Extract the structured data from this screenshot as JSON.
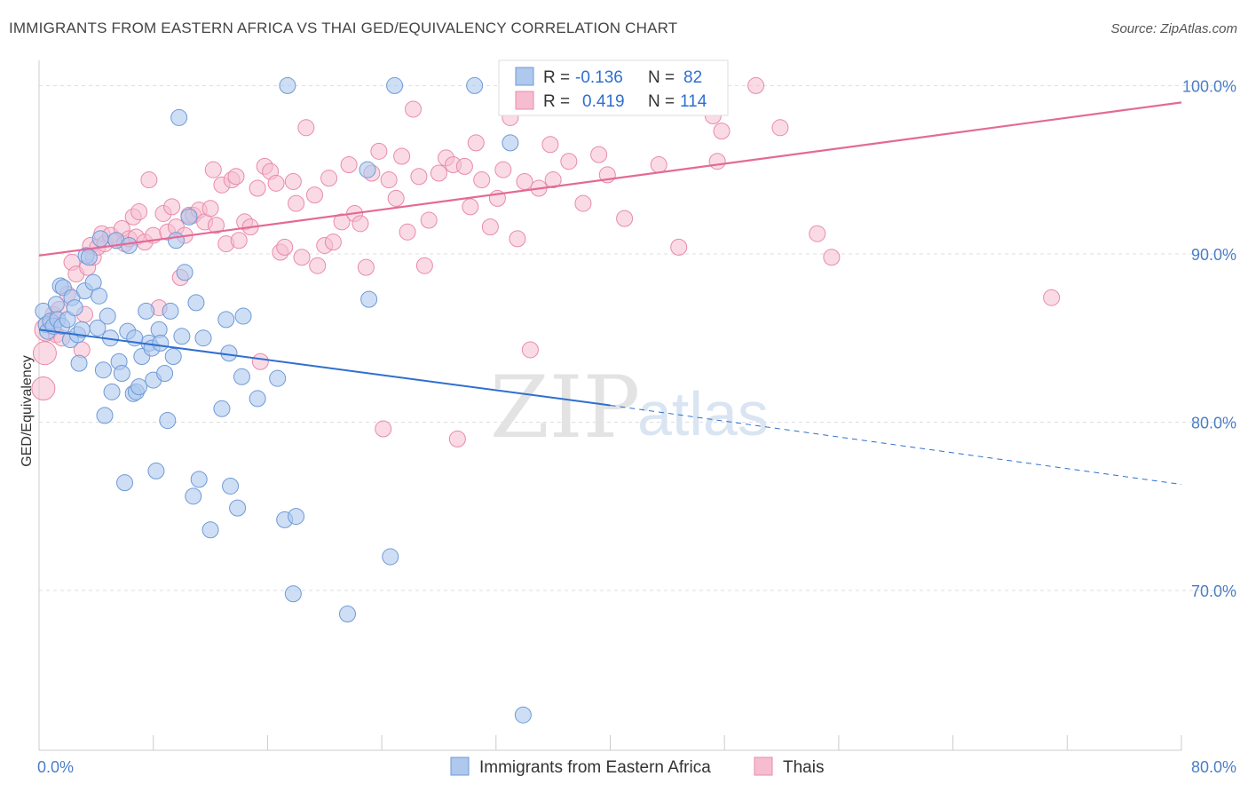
{
  "title": "IMMIGRANTS FROM EASTERN AFRICA VS THAI GED/EQUIVALENCY CORRELATION CHART",
  "source": "Source: ZipAtlas.com",
  "watermark": {
    "zip": "ZIP",
    "atlas": "atlas"
  },
  "colors": {
    "blue_fill": "#aec8ee",
    "blue_stroke": "#6f9ad6",
    "blue_line": "#2f6fcf",
    "pink_fill": "#f6bdd0",
    "pink_stroke": "#e98aab",
    "pink_line": "#e36a96",
    "grid": "#dddddd",
    "tick_text": "#4a7ec7"
  },
  "legend": {
    "rows": [
      {
        "r_label": "R = ",
        "r_value": "-0.136",
        "n_label": "N = ",
        "n_value": "82"
      },
      {
        "r_label": "R = ",
        "r_value": "0.419",
        "n_label": "N = ",
        "n_value": "114"
      }
    ]
  },
  "chart_data": {
    "type": "scatter",
    "title": "IMMIGRANTS FROM EASTERN AFRICA VS THAI GED/EQUIVALENCY CORRELATION CHART",
    "xlabel": "",
    "ylabel": "GED/Equivalency",
    "xlim": [
      0,
      80
    ],
    "ylim": [
      60.5,
      101.5
    ],
    "x_tick_labels": [
      "0.0%",
      "80.0%"
    ],
    "y_ticks": [
      70,
      80,
      90,
      100
    ],
    "y_tick_labels": [
      "70.0%",
      "80.0%",
      "90.0%",
      "100.0%"
    ],
    "grid": true,
    "legend_position": "bottom",
    "series": [
      {
        "name": "Immigrants from Eastern Africa",
        "color": "#aec8ee",
        "r": -0.136,
        "n": 82,
        "trend": {
          "x0": 0,
          "y0": 85.5,
          "x1": 40,
          "y1": 81.0,
          "dashed_to_x": 80,
          "dashed_to_y": 76.3
        },
        "points": [
          [
            0.3,
            86.6
          ],
          [
            0.5,
            85.8
          ],
          [
            0.6,
            85.4
          ],
          [
            0.8,
            86.0
          ],
          [
            1.0,
            85.7
          ],
          [
            1.2,
            87.0
          ],
          [
            1.3,
            86.1
          ],
          [
            1.5,
            88.1
          ],
          [
            1.6,
            85.7
          ],
          [
            1.7,
            88.0
          ],
          [
            2.0,
            86.1
          ],
          [
            2.2,
            84.9
          ],
          [
            2.3,
            87.4
          ],
          [
            2.5,
            86.8
          ],
          [
            2.7,
            85.2
          ],
          [
            2.8,
            83.5
          ],
          [
            3.0,
            85.5
          ],
          [
            3.2,
            87.8
          ],
          [
            3.3,
            89.9
          ],
          [
            3.5,
            89.8
          ],
          [
            3.8,
            88.3
          ],
          [
            4.1,
            85.6
          ],
          [
            4.2,
            87.5
          ],
          [
            4.3,
            90.9
          ],
          [
            4.5,
            83.1
          ],
          [
            4.6,
            80.4
          ],
          [
            4.8,
            86.3
          ],
          [
            5.0,
            85.0
          ],
          [
            5.1,
            81.8
          ],
          [
            5.4,
            90.8
          ],
          [
            5.6,
            83.6
          ],
          [
            5.8,
            82.9
          ],
          [
            6.0,
            76.4
          ],
          [
            6.2,
            85.4
          ],
          [
            6.3,
            90.5
          ],
          [
            6.6,
            81.7
          ],
          [
            6.8,
            81.8
          ],
          [
            7.0,
            82.1
          ],
          [
            7.2,
            83.9
          ],
          [
            7.5,
            86.6
          ],
          [
            7.7,
            84.7
          ],
          [
            7.9,
            84.4
          ],
          [
            8.0,
            82.5
          ],
          [
            8.2,
            77.1
          ],
          [
            8.4,
            85.5
          ],
          [
            8.5,
            84.7
          ],
          [
            8.8,
            82.9
          ],
          [
            9.0,
            80.1
          ],
          [
            9.2,
            86.6
          ],
          [
            9.4,
            83.9
          ],
          [
            9.6,
            90.8
          ],
          [
            9.8,
            98.1
          ],
          [
            10.0,
            85.1
          ],
          [
            10.2,
            88.9
          ],
          [
            10.5,
            92.2
          ],
          [
            10.8,
            75.6
          ],
          [
            11.0,
            87.1
          ],
          [
            11.2,
            76.6
          ],
          [
            11.5,
            85.0
          ],
          [
            12.0,
            73.6
          ],
          [
            12.8,
            80.8
          ],
          [
            13.1,
            86.1
          ],
          [
            13.3,
            84.1
          ],
          [
            13.4,
            76.2
          ],
          [
            13.9,
            74.9
          ],
          [
            14.2,
            82.7
          ],
          [
            14.3,
            86.3
          ],
          [
            15.3,
            81.4
          ],
          [
            16.7,
            82.6
          ],
          [
            17.2,
            74.2
          ],
          [
            17.4,
            100.0
          ],
          [
            17.8,
            69.8
          ],
          [
            18.0,
            74.4
          ],
          [
            21.6,
            68.6
          ],
          [
            23.0,
            95.0
          ],
          [
            23.1,
            87.3
          ],
          [
            24.6,
            72.0
          ],
          [
            24.9,
            100.0
          ],
          [
            30.5,
            100.0
          ],
          [
            33.0,
            96.6
          ],
          [
            33.9,
            62.6
          ],
          [
            6.7,
            85.0
          ]
        ]
      },
      {
        "name": "Thais",
        "color": "#f6bdd0",
        "r": 0.419,
        "n": 114,
        "trend": {
          "x0": 0,
          "y0": 89.9,
          "x1": 80,
          "y1": 99.0
        },
        "points": [
          [
            0.3,
            82.0
          ],
          [
            0.4,
            84.1
          ],
          [
            0.5,
            85.5
          ],
          [
            0.8,
            85.9
          ],
          [
            1.0,
            86.4
          ],
          [
            1.2,
            85.2
          ],
          [
            1.4,
            86.7
          ],
          [
            1.6,
            85.0
          ],
          [
            2.0,
            87.6
          ],
          [
            2.3,
            89.5
          ],
          [
            2.6,
            88.8
          ],
          [
            3.0,
            84.3
          ],
          [
            3.2,
            86.4
          ],
          [
            3.4,
            89.2
          ],
          [
            3.6,
            90.5
          ],
          [
            3.8,
            89.8
          ],
          [
            4.1,
            90.4
          ],
          [
            4.4,
            91.2
          ],
          [
            4.6,
            90.6
          ],
          [
            5.0,
            91.1
          ],
          [
            5.4,
            90.8
          ],
          [
            5.8,
            91.5
          ],
          [
            6.0,
            90.6
          ],
          [
            6.3,
            90.9
          ],
          [
            6.6,
            92.2
          ],
          [
            6.8,
            91.0
          ],
          [
            7.0,
            92.5
          ],
          [
            7.4,
            90.7
          ],
          [
            7.7,
            94.4
          ],
          [
            8.0,
            91.1
          ],
          [
            8.4,
            86.8
          ],
          [
            8.7,
            92.4
          ],
          [
            9.0,
            91.3
          ],
          [
            9.3,
            92.8
          ],
          [
            9.6,
            91.6
          ],
          [
            9.9,
            88.6
          ],
          [
            10.2,
            91.1
          ],
          [
            10.5,
            92.3
          ],
          [
            10.8,
            92.3
          ],
          [
            11.2,
            92.6
          ],
          [
            11.6,
            91.9
          ],
          [
            12.0,
            92.7
          ],
          [
            12.2,
            95.0
          ],
          [
            12.4,
            91.7
          ],
          [
            12.8,
            94.1
          ],
          [
            13.1,
            90.6
          ],
          [
            13.5,
            94.4
          ],
          [
            13.8,
            94.6
          ],
          [
            14.0,
            90.8
          ],
          [
            14.4,
            91.9
          ],
          [
            14.8,
            91.6
          ],
          [
            15.3,
            93.9
          ],
          [
            15.5,
            83.6
          ],
          [
            15.8,
            95.2
          ],
          [
            16.2,
            94.9
          ],
          [
            16.6,
            94.2
          ],
          [
            16.9,
            90.1
          ],
          [
            17.2,
            90.4
          ],
          [
            17.8,
            94.3
          ],
          [
            18.0,
            93.0
          ],
          [
            18.4,
            89.8
          ],
          [
            18.7,
            97.5
          ],
          [
            19.3,
            93.5
          ],
          [
            19.5,
            89.3
          ],
          [
            20.0,
            90.5
          ],
          [
            20.3,
            94.5
          ],
          [
            20.6,
            90.7
          ],
          [
            21.2,
            91.9
          ],
          [
            21.7,
            95.3
          ],
          [
            22.1,
            92.4
          ],
          [
            22.5,
            91.8
          ],
          [
            22.9,
            89.2
          ],
          [
            23.3,
            94.8
          ],
          [
            23.8,
            96.1
          ],
          [
            24.1,
            79.6
          ],
          [
            24.5,
            94.4
          ],
          [
            25.0,
            93.3
          ],
          [
            25.4,
            95.8
          ],
          [
            25.8,
            91.3
          ],
          [
            26.2,
            98.6
          ],
          [
            26.6,
            94.6
          ],
          [
            27.0,
            89.3
          ],
          [
            27.3,
            92.0
          ],
          [
            28.0,
            94.8
          ],
          [
            28.5,
            95.7
          ],
          [
            29.0,
            95.3
          ],
          [
            29.3,
            79.0
          ],
          [
            29.8,
            95.2
          ],
          [
            30.2,
            92.8
          ],
          [
            30.6,
            96.6
          ],
          [
            31.0,
            94.4
          ],
          [
            31.6,
            91.6
          ],
          [
            32.1,
            93.3
          ],
          [
            32.5,
            95.0
          ],
          [
            33.0,
            98.1
          ],
          [
            33.5,
            90.9
          ],
          [
            34.0,
            94.3
          ],
          [
            34.4,
            84.3
          ],
          [
            35.0,
            93.9
          ],
          [
            35.8,
            96.5
          ],
          [
            36.0,
            94.4
          ],
          [
            37.1,
            95.5
          ],
          [
            38.1,
            93.0
          ],
          [
            39.2,
            95.9
          ],
          [
            39.8,
            94.7
          ],
          [
            41.0,
            92.1
          ],
          [
            43.4,
            95.3
          ],
          [
            44.8,
            90.4
          ],
          [
            47.2,
            98.2
          ],
          [
            47.5,
            95.5
          ],
          [
            47.8,
            97.3
          ],
          [
            50.2,
            100.0
          ],
          [
            51.9,
            97.5
          ],
          [
            54.5,
            91.2
          ],
          [
            55.5,
            89.8
          ],
          [
            70.9,
            87.4
          ]
        ]
      }
    ]
  }
}
